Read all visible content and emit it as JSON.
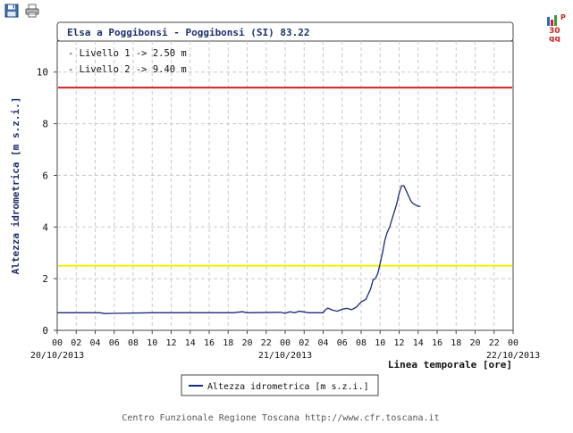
{
  "toolbar": {
    "save_icon": "floppy-disk-icon",
    "print_icon": "printer-icon"
  },
  "badge": {
    "icon": "bar-chart-icon",
    "letter": "P",
    "line1": "30",
    "line2": "gg"
  },
  "footer": "Centro Funzionale Regione Toscana http://www.cfr.toscana.it",
  "colors": {
    "accent": "#1d2f6f",
    "series_line": "#1a2a7a",
    "level1": "#f0f000",
    "level2": "#cc2222",
    "grid": "#c8c8c8",
    "badge_red": "#cc2222"
  },
  "chart_data": {
    "type": "line",
    "title": "Elsa a Poggibonsi - Poggibonsi (SI) 83.22",
    "ylabel": "Altezza idrometrica [m s.z.i.]",
    "xlabel": "Linea temporale [ore]",
    "ylim": [
      0,
      11.2
    ],
    "y_ticks": [
      0,
      2,
      4,
      6,
      8,
      10
    ],
    "x_range": [
      "20/10/2013 00:00",
      "22/10/2013 00:00"
    ],
    "x_tick_labels": [
      "00",
      "02",
      "04",
      "06",
      "08",
      "10",
      "12",
      "14",
      "16",
      "18",
      "20",
      "22",
      "00",
      "02",
      "04",
      "06",
      "08",
      "10",
      "12",
      "14",
      "16",
      "18",
      "20",
      "22",
      "00"
    ],
    "date_labels": [
      {
        "x": "20/10/2013 00:00",
        "text": "20/10/2013"
      },
      {
        "x": "21/10/2013 00:00",
        "text": "21/10/2013"
      },
      {
        "x": "22/10/2013 00:00",
        "text": "22/10/2013"
      }
    ],
    "grid": true,
    "legend_position": "bottom-center",
    "annotations": [
      "- Livello 1 -> 2.50 m",
      "- Livello 2 -> 9.40 m"
    ],
    "thresholds": [
      {
        "value": 2.5,
        "color": "yellow"
      },
      {
        "value": 9.4,
        "color": "red"
      }
    ],
    "series": [
      {
        "name": "Altezza idrometrica [m s.z.i.]",
        "x": [
          "20/10/2013 00:00",
          "20/10/2013 04:30",
          "20/10/2013 05:00",
          "20/10/2013 10:00",
          "20/10/2013 18:30",
          "20/10/2013 19:30",
          "20/10/2013 20:00",
          "20/10/2013 23:30",
          "21/10/2013 00:00",
          "21/10/2013 00:30",
          "21/10/2013 01:00",
          "21/10/2013 01:30",
          "21/10/2013 02:30",
          "21/10/2013 03:00",
          "21/10/2013 04:00",
          "21/10/2013 04:15",
          "21/10/2013 04:30",
          "21/10/2013 05:00",
          "21/10/2013 05:30",
          "21/10/2013 06:00",
          "21/10/2013 06:30",
          "21/10/2013 07:00",
          "21/10/2013 07:30",
          "21/10/2013 08:00",
          "21/10/2013 08:30",
          "21/10/2013 09:00",
          "21/10/2013 09:15",
          "21/10/2013 09:30",
          "21/10/2013 09:45",
          "21/10/2013 10:00",
          "21/10/2013 10:15",
          "21/10/2013 10:30",
          "21/10/2013 10:45",
          "21/10/2013 11:00",
          "21/10/2013 11:15",
          "21/10/2013 11:30",
          "21/10/2013 11:45",
          "21/10/2013 12:00",
          "21/10/2013 12:15",
          "21/10/2013 12:30",
          "21/10/2013 12:45",
          "21/10/2013 13:00",
          "21/10/2013 13:15",
          "21/10/2013 13:30",
          "21/10/2013 13:45",
          "21/10/2013 14:00",
          "21/10/2013 14:15"
        ],
        "values": [
          0.68,
          0.68,
          0.65,
          0.68,
          0.68,
          0.72,
          0.68,
          0.7,
          0.66,
          0.72,
          0.68,
          0.74,
          0.68,
          0.68,
          0.68,
          0.8,
          0.86,
          0.78,
          0.74,
          0.82,
          0.85,
          0.8,
          0.9,
          1.1,
          1.2,
          1.6,
          1.95,
          2.0,
          2.2,
          2.6,
          3.0,
          3.5,
          3.8,
          4.0,
          4.3,
          4.6,
          4.9,
          5.3,
          5.6,
          5.6,
          5.4,
          5.2,
          5.0,
          4.9,
          4.85,
          4.8,
          4.8
        ]
      }
    ]
  }
}
